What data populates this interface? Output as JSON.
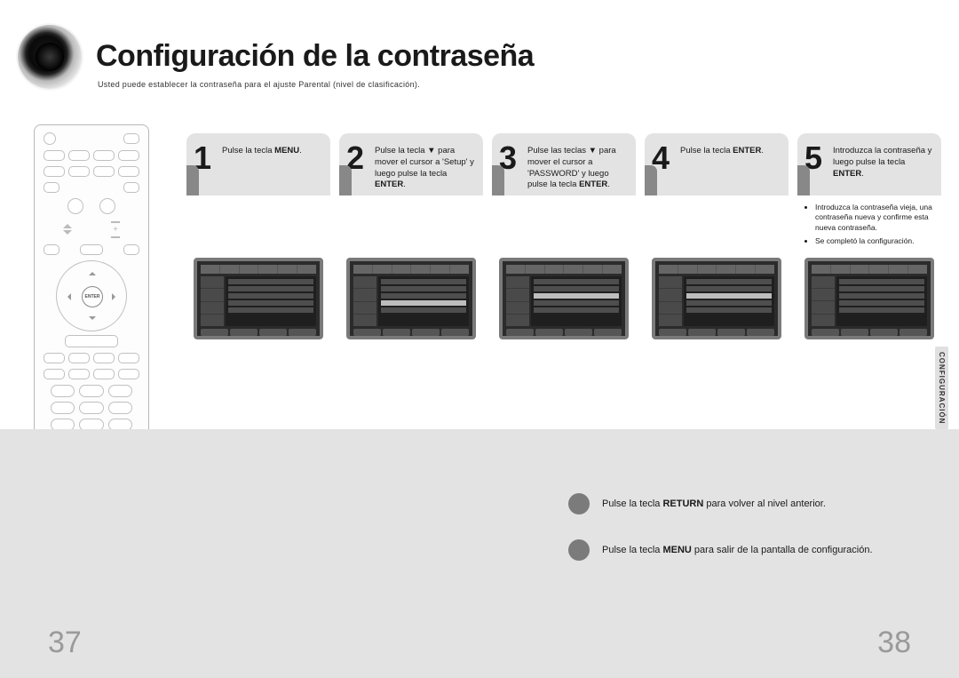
{
  "title": "Configuración de la contraseña",
  "subtitle": "Usted puede establecer la contraseña para el ajuste Parental (nivel de clasificación).",
  "sideTab": "CONFIGURACIÓN",
  "pageLeft": "37",
  "pageRight": "38",
  "steps": [
    {
      "num": "1",
      "html": "Pulse la tecla <b>MENU</b>."
    },
    {
      "num": "2",
      "html": "Pulse la tecla ▼ para mover el cursor a 'Setup' y luego pulse la tecla <b>ENTER</b>."
    },
    {
      "num": "3",
      "html": "Pulse las teclas ▼ para mover el cursor a 'PASSWORD' y luego pulse la tecla <b>ENTER</b>."
    },
    {
      "num": "4",
      "html": "Pulse la tecla <b>ENTER</b>."
    },
    {
      "num": "5",
      "html": "Introduzca la contraseña y luego pulse la tecla <b>ENTER</b>.",
      "notes": [
        "Introduzca la contraseña vieja, una contraseña nueva y confirme esta nueva contraseña.",
        "Se completó la configuración."
      ]
    }
  ],
  "hints": [
    "Pulse la tecla <b>RETURN</b> para volver al nivel anterior.",
    "Pulse la tecla <b>MENU</b> para salir de la pantalla de configuración."
  ],
  "colors": {
    "stepHeaderBg": "#e3e3e3",
    "bottomBandBg": "#e3e3e3",
    "screenshotBorder": "#7a7a7a",
    "screenshotBg": "#2b2b2b",
    "hintDot": "#7b7b7b",
    "pageNum": "#9a9a9a"
  }
}
